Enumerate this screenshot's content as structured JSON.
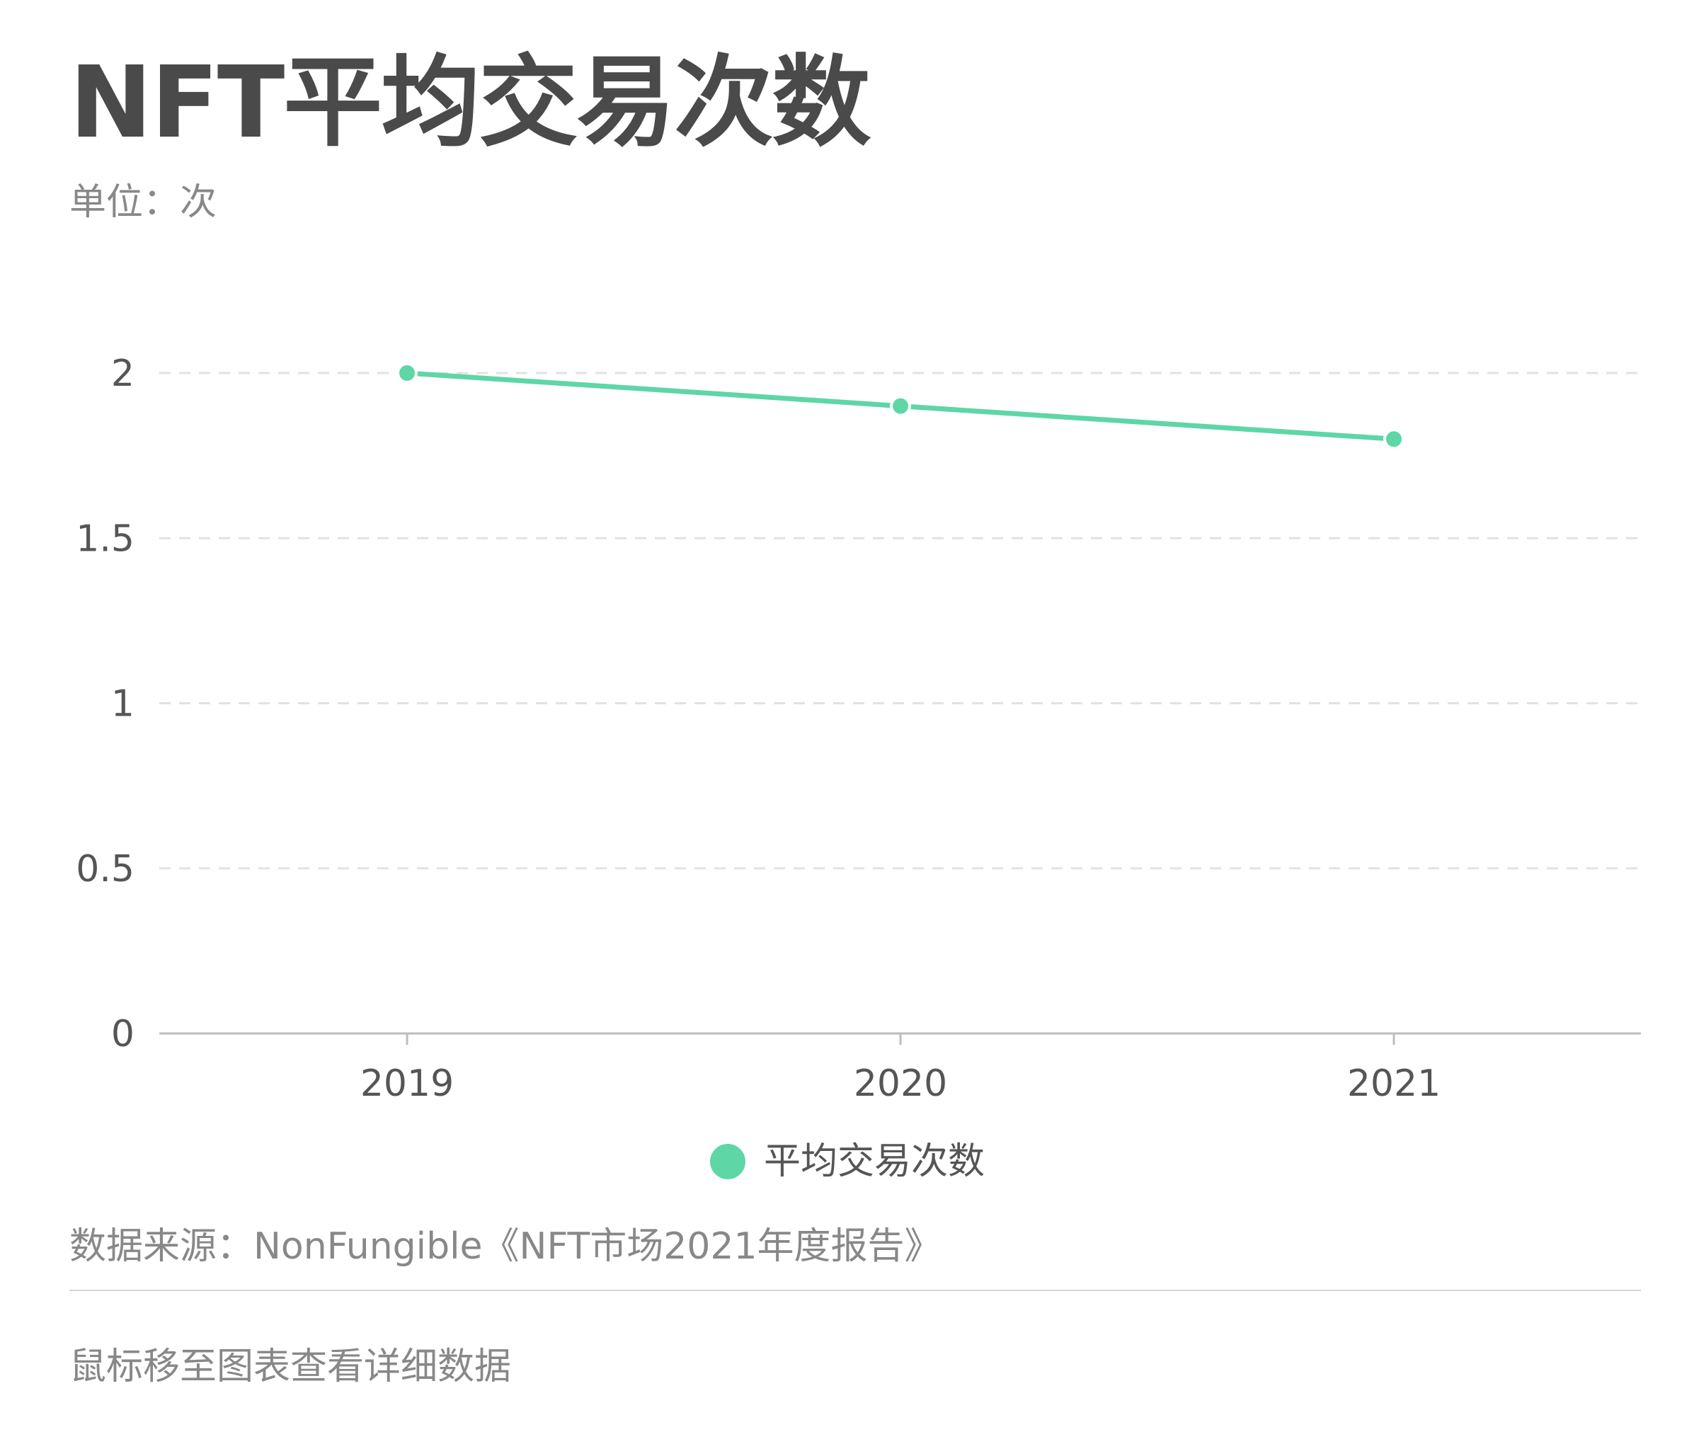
{
  "title": "NFT平均交易次数",
  "unit_label": "单位：次",
  "source": "数据来源：NonFungible《NFT市场2021年度报告》",
  "hint": "鼠标移至图表查看详细数据",
  "colors": {
    "series": "#5ed6a6",
    "grid": "#e2e2e2",
    "axis": "#bdbdbd",
    "text": "#555555"
  },
  "chart_data": {
    "type": "line",
    "title": "NFT平均交易次数",
    "subtitle": "单位：次",
    "categories": [
      "2019",
      "2020",
      "2021"
    ],
    "series": [
      {
        "name": "平均交易次数",
        "values": [
          2.0,
          1.9,
          1.8
        ]
      }
    ],
    "ylim": [
      0,
      2
    ],
    "yticks": [
      0,
      0.5,
      1,
      1.5,
      2
    ],
    "ytick_labels": [
      "0",
      "0.5",
      "1",
      "1.5",
      "2"
    ],
    "grid": true,
    "grid_style": "dashed",
    "legend": "bottom-center"
  }
}
